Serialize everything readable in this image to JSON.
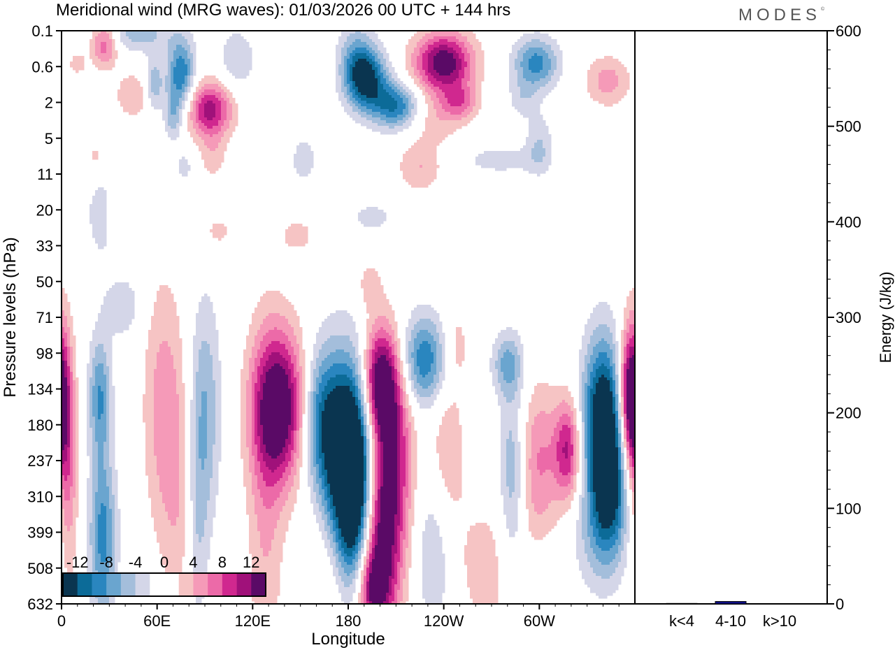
{
  "logo": {
    "text": "MODES",
    "mark": "©"
  },
  "chart_data": [
    {
      "type": "heatmap",
      "title": "Meridional wind (MRG waves):  01/03/2026  00 UTC  + 144 hrs",
      "xlabel": "Longitude",
      "ylabel": "Pressure levels (hPa)",
      "x_ticks": [
        "0",
        "60E",
        "120E",
        "180",
        "120W",
        "60W"
      ],
      "x_tick_degrees": [
        0,
        60,
        120,
        180,
        240,
        300
      ],
      "xlim": [
        0,
        360
      ],
      "y_levels": [
        "0.1",
        "0.6",
        "2",
        "5",
        "11",
        "20",
        "33",
        "50",
        "71",
        "98",
        "134",
        "180",
        "237",
        "310",
        "399",
        "508",
        "632"
      ],
      "colorbar": {
        "tick_labels": [
          "-12",
          "-8",
          "-4",
          "0",
          "4",
          "8",
          "12"
        ],
        "colors": [
          "#0a3550",
          "#0c6b98",
          "#2a86bf",
          "#6aa5cf",
          "#a4bedb",
          "#d4d6e8",
          "#ffffff",
          "#ffffff",
          "#f6c4c4",
          "#f59ab8",
          "#ec6aa8",
          "#d0288f",
          "#a0117a",
          "#5a0a66"
        ]
      },
      "blobs": [
        {
          "lon": 10,
          "lev": 0.9,
          "value": 3,
          "sx": 4,
          "sy": 0.25
        },
        {
          "lon": 27,
          "lev": 0.35,
          "value": 8,
          "sx": 6,
          "sy": 0.45
        },
        {
          "lon": 48,
          "lev": 0.1,
          "value": -5,
          "sx": 16,
          "sy": 0.35
        },
        {
          "lon": 45,
          "lev": 1.8,
          "value": 4,
          "sx": 8,
          "sy": 0.45
        },
        {
          "lon": 58,
          "lev": 1.5,
          "value": -6,
          "sx": 4,
          "sy": 0.5
        },
        {
          "lon": 75,
          "lev": 1.2,
          "value": -10,
          "sx": 6,
          "sy": 0.7
        },
        {
          "lon": 70,
          "lev": 2.4,
          "value": -5,
          "sx": 4,
          "sy": 0.5
        },
        {
          "lon": 93,
          "lev": 2.2,
          "value": 11,
          "sx": 10,
          "sy": 0.55
        },
        {
          "lon": 95,
          "lev": 3.5,
          "value": 3,
          "sx": 6,
          "sy": 0.5
        },
        {
          "lon": 110,
          "lev": 0.8,
          "value": -4,
          "sx": 8,
          "sy": 0.6
        },
        {
          "lon": 23,
          "lev": 3.6,
          "value": 3,
          "sx": 8,
          "sy": 0.55
        },
        {
          "lon": 25,
          "lev": 5.0,
          "value": -4,
          "sx": 6,
          "sy": 0.9
        },
        {
          "lon": 33,
          "lev": 5.0,
          "value": 3,
          "sx": 4,
          "sy": 0.4
        },
        {
          "lon": 77,
          "lev": 3.8,
          "value": -3,
          "sx": 4,
          "sy": 0.3
        },
        {
          "lon": 98,
          "lev": 5.6,
          "value": 3,
          "sx": 6,
          "sy": 0.3
        },
        {
          "lon": 185,
          "lev": 0.8,
          "value": -6,
          "sx": 8,
          "sy": 0.7
        },
        {
          "lon": 192,
          "lev": 1.4,
          "value": -12,
          "sx": 9,
          "sy": 0.6
        },
        {
          "lon": 210,
          "lev": 2.1,
          "value": -10,
          "sx": 10,
          "sy": 0.45
        },
        {
          "lon": 240,
          "lev": 0.9,
          "value": 14,
          "sx": 13,
          "sy": 0.6
        },
        {
          "lon": 250,
          "lev": 2.0,
          "value": 6,
          "sx": 8,
          "sy": 0.35
        },
        {
          "lon": 235,
          "lev": 2.5,
          "value": 3,
          "sx": 12,
          "sy": 0.5
        },
        {
          "lon": 298,
          "lev": 0.9,
          "value": -9,
          "sx": 10,
          "sy": 0.5
        },
        {
          "lon": 290,
          "lev": 1.9,
          "value": -3,
          "sx": 7,
          "sy": 0.4
        },
        {
          "lon": 343,
          "lev": 1.4,
          "value": 5,
          "sx": 10,
          "sy": 0.5
        },
        {
          "lon": 300,
          "lev": 3.2,
          "value": -4,
          "sx": 6,
          "sy": 0.6
        },
        {
          "lon": 275,
          "lev": 3.6,
          "value": -3,
          "sx": 18,
          "sy": 0.3
        },
        {
          "lon": 225,
          "lev": 3.8,
          "value": 4,
          "sx": 10,
          "sy": 0.5
        },
        {
          "lon": 152,
          "lev": 3.6,
          "value": -4,
          "sx": 5,
          "sy": 0.4
        },
        {
          "lon": 195,
          "lev": 5.2,
          "value": -3,
          "sx": 10,
          "sy": 0.3
        },
        {
          "lon": 148,
          "lev": 5.7,
          "value": 3,
          "sx": 8,
          "sy": 0.35
        },
        {
          "lon": 193,
          "lev": 7.1,
          "value": 3,
          "sx": 6,
          "sy": 0.5
        },
        {
          "lon": 38,
          "lev": 7.7,
          "value": -4,
          "sx": 8,
          "sy": 0.6
        },
        {
          "lon": 0,
          "lev": 10.6,
          "value": 10,
          "sx": 5,
          "sy": 1.8
        },
        {
          "lon": 5,
          "lev": 12.8,
          "value": 4,
          "sx": 4,
          "sy": 2.0
        },
        {
          "lon": 24,
          "lev": 10.2,
          "value": -8,
          "sx": 5,
          "sy": 1.2
        },
        {
          "lon": 26,
          "lev": 14.1,
          "value": -9,
          "sx": 6,
          "sy": 1.6
        },
        {
          "lon": 64,
          "lev": 10.5,
          "value": 5,
          "sx": 9,
          "sy": 2.5
        },
        {
          "lon": 75,
          "lev": 13.3,
          "value": 3,
          "sx": 8,
          "sy": 2.5
        },
        {
          "lon": 90,
          "lev": 10.6,
          "value": -6,
          "sx": 7,
          "sy": 2.2
        },
        {
          "lon": 85,
          "lev": 13.9,
          "value": -4,
          "sx": 5,
          "sy": 2.2
        },
        {
          "lon": 137,
          "lev": 10.5,
          "value": 15,
          "sx": 12,
          "sy": 1.5
        },
        {
          "lon": 128,
          "lev": 13.5,
          "value": 4,
          "sx": 8,
          "sy": 3.5
        },
        {
          "lon": 162,
          "lev": 10.8,
          "value": -8,
          "sx": 9,
          "sy": 1.4
        },
        {
          "lon": 175,
          "lev": 12.0,
          "value": -12,
          "sx": 10,
          "sy": 2.0
        },
        {
          "lon": 185,
          "lev": 12.7,
          "value": -18,
          "sx": 8,
          "sy": 2.0
        },
        {
          "lon": 200,
          "lev": 9.8,
          "value": 14,
          "sx": 8,
          "sy": 1.1
        },
        {
          "lon": 210,
          "lev": 11.5,
          "value": 7,
          "sx": 8,
          "sy": 1.8
        },
        {
          "lon": 200,
          "lev": 14.0,
          "value": 14,
          "sx": 10,
          "sy": 2.0
        },
        {
          "lon": 195,
          "lev": 15.6,
          "value": 8,
          "sx": 7,
          "sy": 0.8
        },
        {
          "lon": 228,
          "lev": 9.2,
          "value": -10,
          "sx": 11,
          "sy": 0.9
        },
        {
          "lon": 242,
          "lev": 11.8,
          "value": 4,
          "sx": 8,
          "sy": 2.0
        },
        {
          "lon": 248,
          "lev": 8.8,
          "value": 3,
          "sx": 6,
          "sy": 0.8
        },
        {
          "lon": 235,
          "lev": 14.6,
          "value": -5,
          "sx": 9,
          "sy": 1.6
        },
        {
          "lon": 283,
          "lev": 12.5,
          "value": -6,
          "sx": 6,
          "sy": 2.0
        },
        {
          "lon": 300,
          "lev": 12.0,
          "value": 6,
          "sx": 9,
          "sy": 1.5
        },
        {
          "lon": 318,
          "lev": 11.7,
          "value": 10,
          "sx": 6,
          "sy": 1.0
        },
        {
          "lon": 280,
          "lev": 9.3,
          "value": -6,
          "sx": 7,
          "sy": 0.6
        },
        {
          "lon": 340,
          "lev": 10.8,
          "value": -15,
          "sx": 9,
          "sy": 1.6
        },
        {
          "lon": 345,
          "lev": 12.8,
          "value": -10,
          "sx": 8,
          "sy": 1.4
        },
        {
          "lon": 335,
          "lev": 14.0,
          "value": -4,
          "sx": 10,
          "sy": 1.2
        },
        {
          "lon": 356,
          "lev": 10.3,
          "value": 11,
          "sx": 5,
          "sy": 1.3
        },
        {
          "lon": 270,
          "lev": 15.0,
          "value": 3,
          "sx": 20,
          "sy": 1.5
        },
        {
          "lon": 300,
          "lev": 15.5,
          "value": -3,
          "sx": 10,
          "sy": 0.8
        },
        {
          "lon": 168,
          "lev": 15.0,
          "value": 3,
          "sx": 10,
          "sy": 1.6
        }
      ]
    },
    {
      "type": "bar",
      "ylabel": "Energy (J/kg)",
      "categories": [
        "k<4",
        "4-10",
        "k>10"
      ],
      "values": [
        0.5,
        2.5,
        0.3
      ],
      "ylim": [
        0,
        600
      ],
      "y_ticks": [
        "0",
        "100",
        "200",
        "300",
        "400",
        "500",
        "600"
      ],
      "bar_color": "#10108a"
    }
  ]
}
